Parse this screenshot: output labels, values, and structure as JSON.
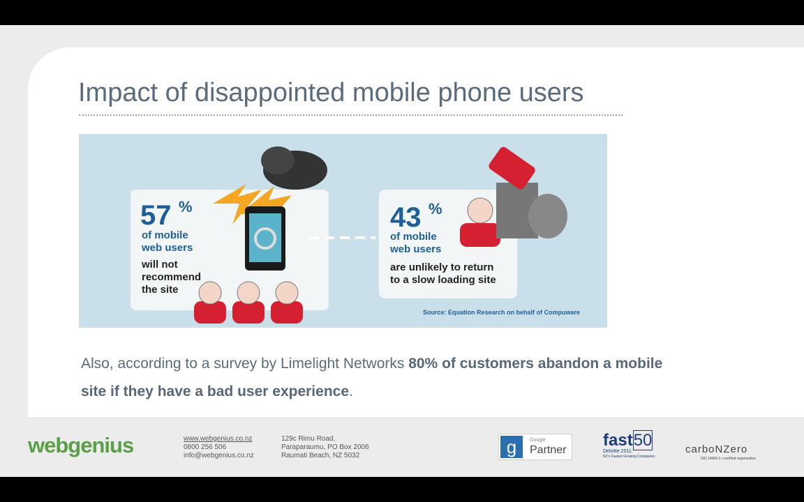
{
  "slide": {
    "title": "Impact of disappointed mobile phone users"
  },
  "infographic": {
    "left": {
      "number": "57",
      "unit": "%",
      "lines": [
        "of mobile",
        "web users"
      ],
      "detail": [
        "will not",
        "recommend",
        "the site"
      ]
    },
    "right": {
      "number": "43",
      "unit": "%",
      "lines": [
        "of mobile",
        "web users"
      ],
      "detail": [
        "are unlikely to return",
        "to a slow loading site"
      ]
    },
    "source": "Source: Equation Research on behalf of Compuware"
  },
  "body": {
    "parts": [
      "Also, according to a survey by Limelight Networks ",
      "80% of customers abandon a mobile site if they have a bad user experience",
      "."
    ]
  },
  "footer": {
    "brand": "webgenius",
    "contact": [
      "www.webgenius.co.nz",
      "0800 256 506",
      "info@webgenius.co.nz"
    ],
    "address": [
      "129c Rimu Road,",
      "Paraparaumu, PO Box 2006",
      "Raumati Beach, NZ 5032"
    ],
    "google": {
      "small": "Google",
      "label": "Partner"
    },
    "fast50": {
      "word": "fast",
      "num": "50",
      "sub": "Deloitte 2011",
      "tag": "NZ's Fastest Growing Companies"
    },
    "carbon": {
      "name": "carboNZero",
      "tag": "ISO 14064-1 • certified organisation"
    }
  }
}
